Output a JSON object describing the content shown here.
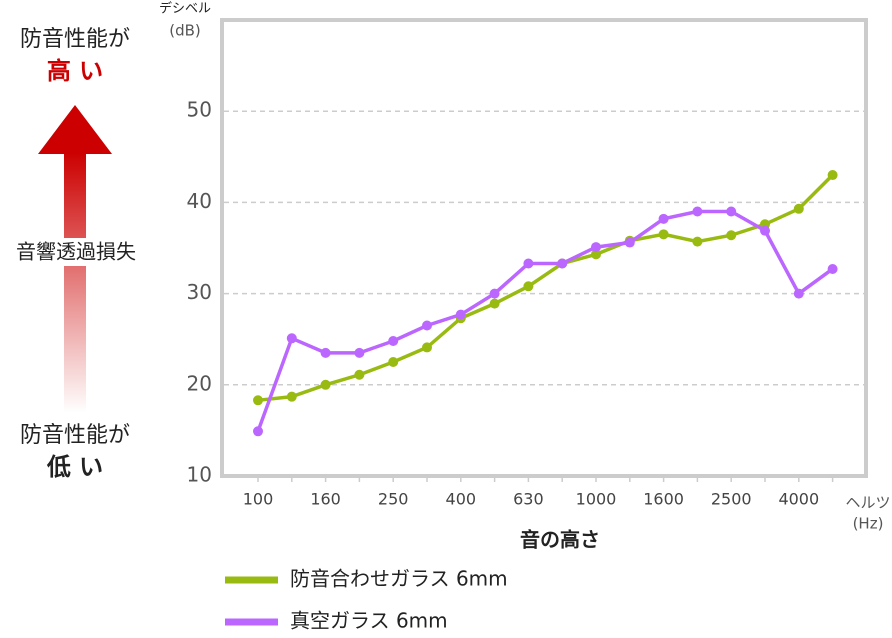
{
  "side_labels": {
    "high_top": "防音性能が",
    "high_bottom": "高 い",
    "middle": "音響透過損失",
    "low_top": "防音性能が",
    "low_bottom": "低 い"
  },
  "chart_data": {
    "type": "line",
    "y_axis_label": "デシベル",
    "y_axis_unit": "(dB)",
    "x_axis_label": "音の高さ",
    "x_axis_name": "ヘルツ",
    "x_axis_unit": "(Hz)",
    "categories": [
      "100",
      null,
      "160",
      null,
      "250",
      null,
      "400",
      null,
      "630",
      null,
      "1000",
      null,
      "1600",
      null,
      "2500",
      null,
      "4000",
      null
    ],
    "series": [
      {
        "name": "防音合わせガラス 6mm",
        "color": "#99bb11",
        "values": [
          18.3,
          18.7,
          20.0,
          21.1,
          22.5,
          24.1,
          27.3,
          28.9,
          30.8,
          33.3,
          34.3,
          35.8,
          36.5,
          35.7,
          36.4,
          37.6,
          39.3,
          43.0
        ]
      },
      {
        "name": "真空ガラス 6mm",
        "color": "#bb66ff",
        "values": [
          14.9,
          25.1,
          23.5,
          23.5,
          24.8,
          26.5,
          27.7,
          30.0,
          33.3,
          33.3,
          35.1,
          35.6,
          38.2,
          39.0,
          39.0,
          36.9,
          30.0,
          32.7
        ]
      }
    ],
    "ylim": [
      10,
      60
    ],
    "yticks": [
      10,
      20,
      30,
      40,
      50
    ],
    "grid": true
  }
}
